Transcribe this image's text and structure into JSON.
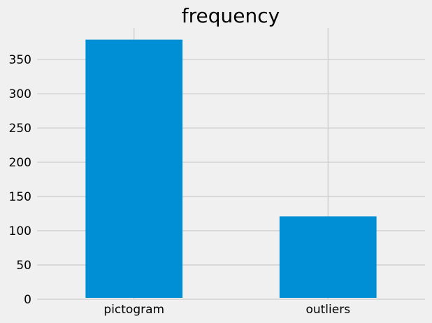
{
  "chart_data": {
    "type": "bar",
    "title": "frequency",
    "categories": [
      "pictogram",
      "outliers"
    ],
    "values": [
      379,
      121
    ],
    "xlabel": "",
    "ylabel": "",
    "ylim": [
      0,
      396
    ],
    "yticks": [
      0,
      50,
      100,
      150,
      200,
      250,
      300,
      350
    ],
    "grid": true,
    "legend": "none",
    "colors": {
      "bar": "#008fd5",
      "background": "#f0f0f0",
      "grid": "#cbcbcb"
    }
  }
}
